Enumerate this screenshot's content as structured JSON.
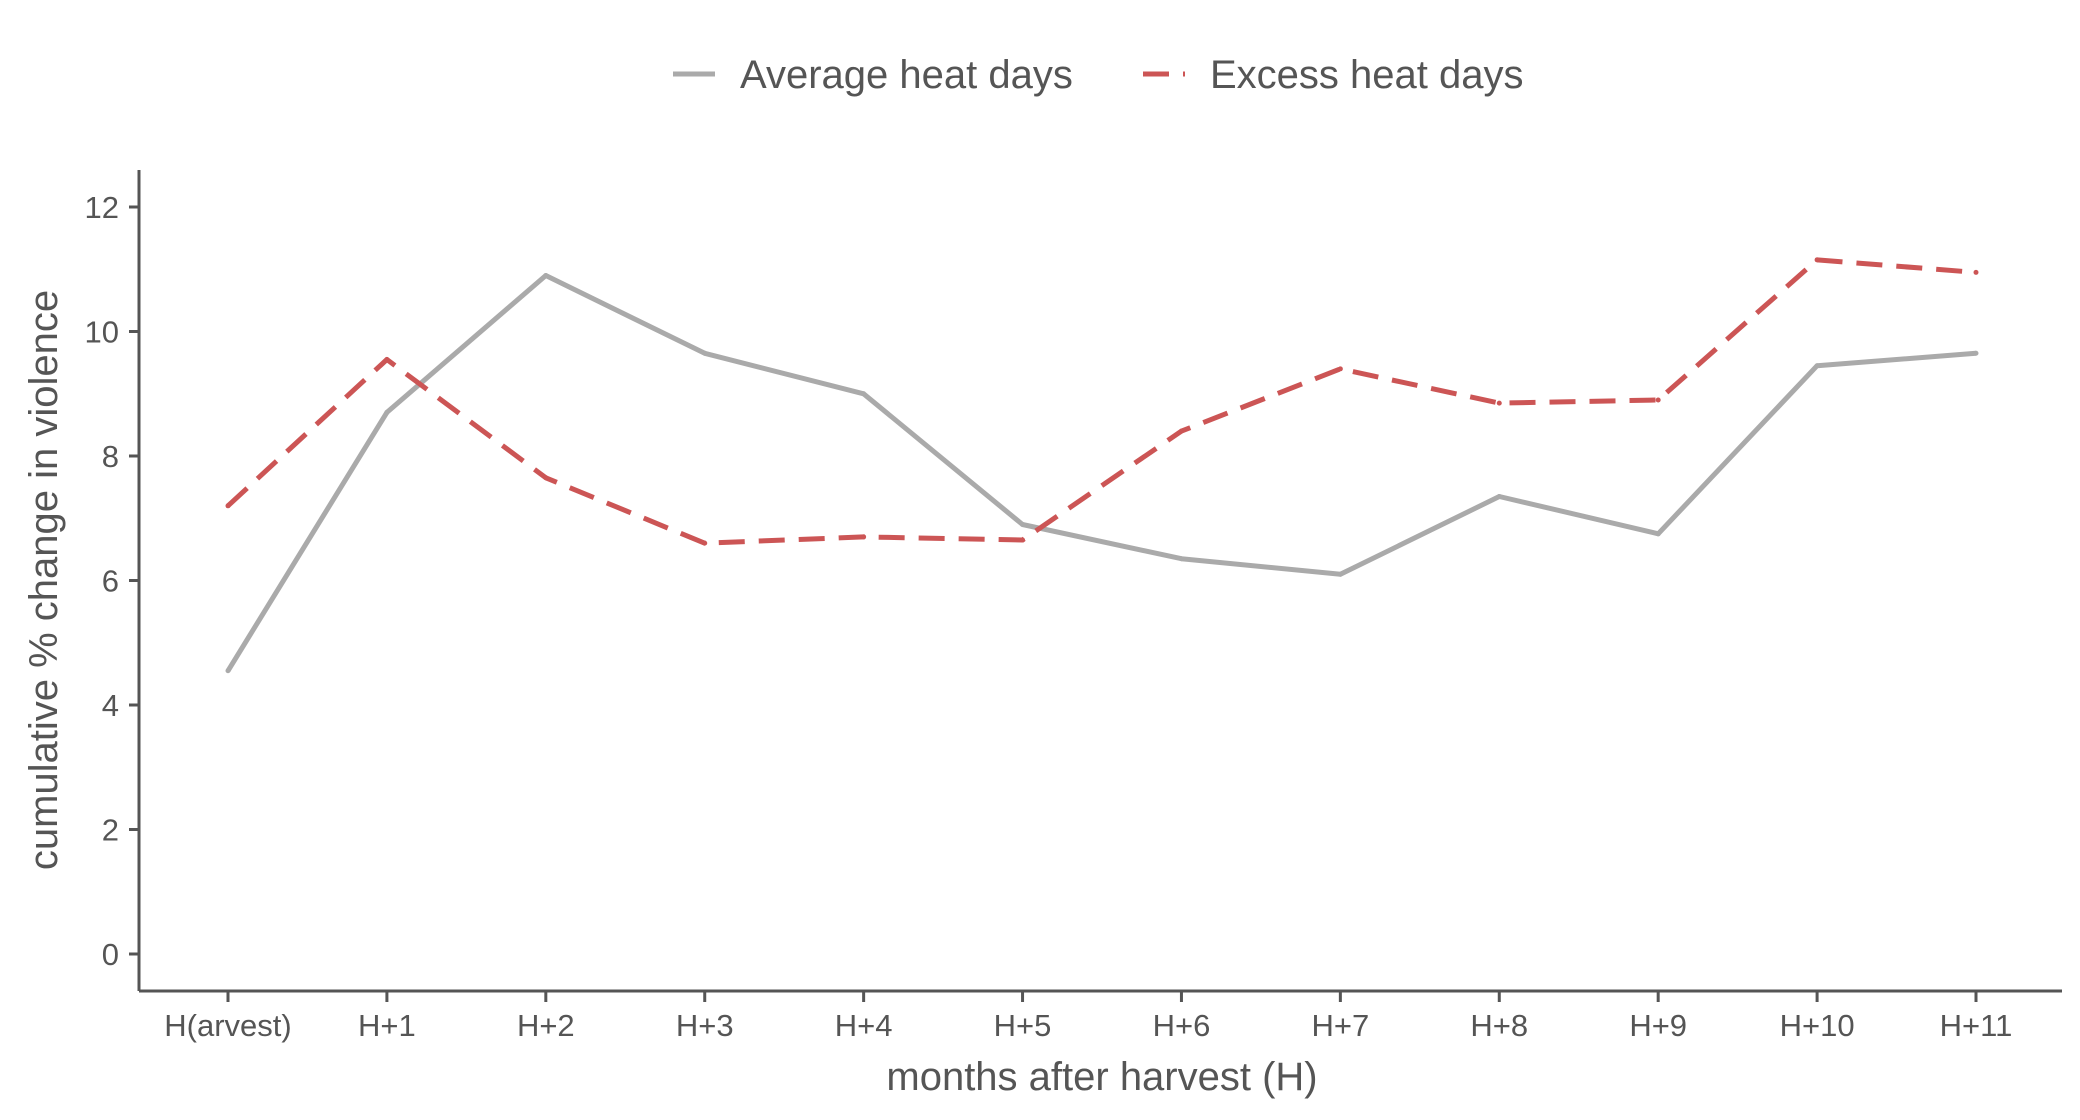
{
  "chart_data": {
    "type": "line",
    "title": "",
    "xlabel": "months after harvest (H)",
    "ylabel": "cumulative % change in violence",
    "categories": [
      "H(arvest)",
      "H+1",
      "H+2",
      "H+3",
      "H+4",
      "H+5",
      "H+6",
      "H+7",
      "H+8",
      "H+9",
      "H+10",
      "H+11"
    ],
    "yticks": [
      0,
      2,
      4,
      6,
      8,
      10,
      12
    ],
    "ylim": [
      -0.6,
      12.6
    ],
    "grid": false,
    "legend_position": "top",
    "series": [
      {
        "name": "Average heat days",
        "color": "#aaaaaa",
        "dash": "solid",
        "values": [
          4.55,
          8.7,
          10.9,
          9.65,
          9.0,
          6.9,
          6.35,
          6.1,
          7.35,
          6.75,
          9.45,
          9.65
        ]
      },
      {
        "name": "Excess heat days",
        "color": "#cc5555",
        "dash": "dashed",
        "values": [
          7.2,
          9.55,
          7.65,
          6.6,
          6.7,
          6.65,
          8.4,
          9.4,
          8.85,
          8.9,
          11.15,
          10.95
        ]
      }
    ]
  }
}
